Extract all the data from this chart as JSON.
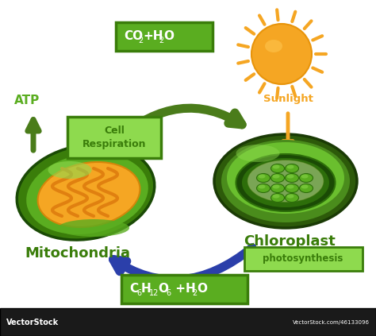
{
  "background_color": "#ffffff",
  "arrow_green_color": "#4a7c1a",
  "arrow_blue_color": "#2b3faa",
  "label_box_color": "#5aad20",
  "label_box_dark": "#3a7d0a",
  "atp_text": "ATP",
  "cell_resp_text": "Cell\nRespiration",
  "mitochondria_text": "Mitochondria",
  "chloroplast_text": "Chloroplast",
  "photosynthesis_text": "photosynthesis",
  "sunlight_text": "Sunlight",
  "sun_color": "#f5a623",
  "sun_ray_color": "#f5a623",
  "vectorstock_bg": "#1a1a1a",
  "vectorstock_text": "VectorStock",
  "vectorstock_url": "VectorStock.com/46133096",
  "dark_green_text": "#3a7d0a",
  "bright_green_text": "#5aad20",
  "orange_text": "#f5a623",
  "mito_dark": "#3a7d0a",
  "mito_mid": "#5aad20",
  "mito_inner": "#f5a623",
  "mito_cristate": "#e08010",
  "chloro_darkest": "#1a4a05",
  "chloro_dark": "#2d6e0a",
  "chloro_mid": "#4a8c1c",
  "chloro_light": "#6abf2e",
  "chloro_highlight": "#8eda4e",
  "grana_color": "#5aad20",
  "grana_edge": "#3a7d0a"
}
